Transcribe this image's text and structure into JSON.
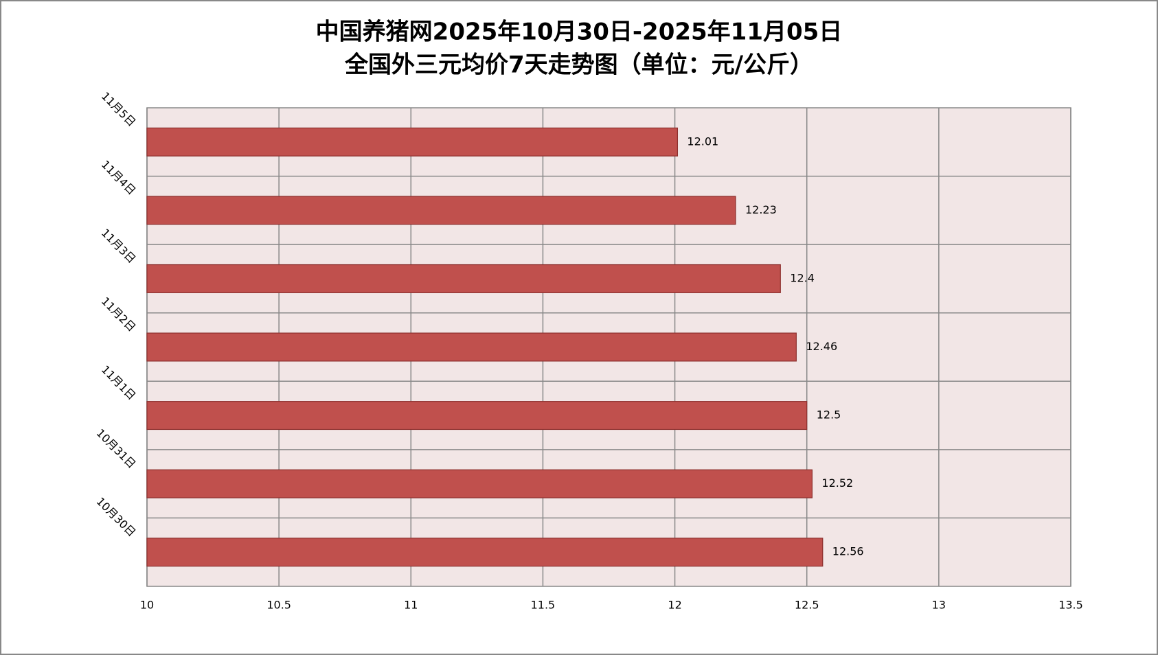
{
  "chart_data": {
    "type": "barh",
    "title": "中国养猪网2025年10月30日-2025年11月05日",
    "subtitle": "全国外三元均价7天走势图（单位：元/公斤）",
    "categories": [
      "10月30日",
      "10月31日",
      "11月1日",
      "11月2日",
      "11月3日",
      "11月4日",
      "11月5日"
    ],
    "values": [
      12.56,
      12.52,
      12.5,
      12.46,
      12.4,
      12.23,
      12.01
    ],
    "color": "#c0504d",
    "xlim": [
      10,
      13.5
    ],
    "xticks": [
      10,
      10.5,
      11,
      11.5,
      12,
      12.5,
      13,
      13.5
    ],
    "grid": true
  }
}
